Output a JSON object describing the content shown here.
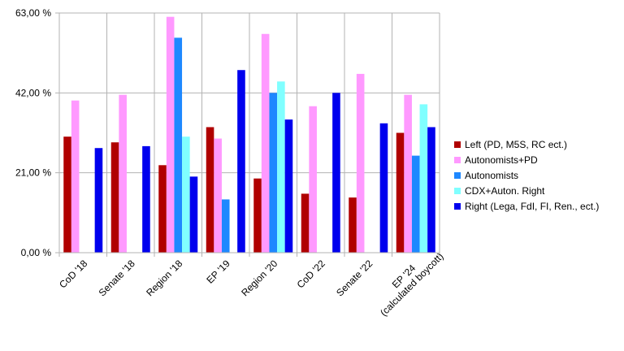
{
  "chart_data": {
    "type": "bar",
    "categories": [
      "CoD '18",
      "Senate '18",
      "Region '18",
      "EP '19",
      "Region '20",
      "CoD '22",
      "Senate '22",
      "EP '24\n(calculated boycott)"
    ],
    "series": [
      {
        "name": "Left (PD, M5S, RC ect.)",
        "color": "#b00000",
        "values": [
          30.5,
          29.0,
          23.0,
          33.0,
          19.5,
          15.5,
          14.5,
          31.5
        ]
      },
      {
        "name": "Autonomists+PD",
        "color": "#ff99ff",
        "values": [
          40.0,
          41.5,
          62.0,
          30.0,
          57.5,
          38.5,
          47.0,
          41.5
        ]
      },
      {
        "name": "Autonomists",
        "color": "#1e88ff",
        "values": [
          null,
          null,
          56.5,
          14.0,
          42.0,
          null,
          null,
          25.5
        ]
      },
      {
        "name": "CDX+Auton. Right",
        "color": "#80ffff",
        "values": [
          null,
          null,
          30.5,
          null,
          45.0,
          null,
          null,
          39.0
        ]
      },
      {
        "name": "Right (Lega, FdI, FI, Ren., ect.)",
        "color": "#0000ee",
        "values": [
          27.5,
          28.0,
          20.0,
          48.0,
          35.0,
          42.0,
          34.0,
          33.0
        ]
      }
    ],
    "yticks": [
      "0,00 %",
      "21,00 %",
      "42,00 %",
      "63,00 %"
    ],
    "ytick_values": [
      0,
      21,
      42,
      63
    ],
    "ylim": [
      0,
      63
    ],
    "grid": "horizontal and vertical",
    "legend": "right",
    "title": "",
    "xlabel": "",
    "ylabel": ""
  }
}
